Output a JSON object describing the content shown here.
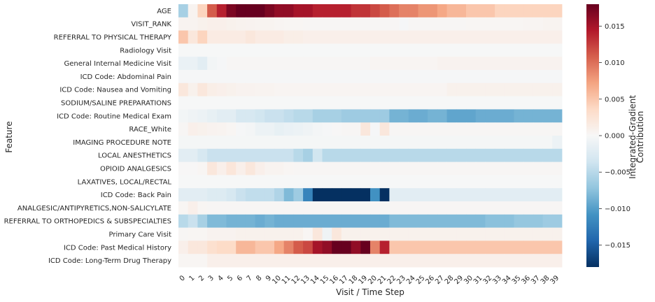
{
  "chart_data": {
    "type": "heatmap",
    "xlabel": "Visit / Time Step",
    "ylabel": "Feature",
    "colorbar_label": "Integrated-Gradient\nContribution",
    "colormap": "RdBu_r",
    "vmin": -0.018,
    "vmax": 0.018,
    "colorbar_ticks": [
      0.015,
      0.01,
      0.005,
      0.0,
      -0.005,
      -0.01,
      -0.015
    ],
    "colorbar_tick_labels": [
      "0.015",
      "0.010",
      "0.005",
      "0.000",
      "−0.005",
      "−0.010",
      "−0.015"
    ],
    "columns": [
      "0",
      "1",
      "2",
      "3",
      "4",
      "5",
      "6",
      "7",
      "8",
      "9",
      "10",
      "11",
      "12",
      "13",
      "14",
      "15",
      "16",
      "17",
      "18",
      "19",
      "20",
      "21",
      "22",
      "23",
      "24",
      "25",
      "26",
      "27",
      "28",
      "29",
      "30",
      "31",
      "32",
      "33",
      "34",
      "35",
      "36",
      "37",
      "38",
      "39"
    ],
    "rows": [
      "AGE",
      "VISIT_RANK",
      "REFERRAL TO PHYSICAL THERAPY",
      "Radiology Visit",
      "General Internal Medicine Visit",
      "ICD Code: Abdominal Pain",
      "ICD Code: Nausea and Vomiting",
      "SODIUM/SALINE PREPARATIONS",
      "ICD Code: Routine Medical Exam",
      "RACE_White",
      "IMAGING PROCEDURE NOTE",
      "LOCAL ANESTHETICS",
      "OPIOID ANALGESICS",
      "LAXATIVES, LOCAL/RECTAL",
      "ICD Code: Back Pain",
      "ANALGESIC/ANTIPYRETICS,NON-SALICYLATE",
      "REFERRAL TO ORTHOPEDICS & SUBSPECIALTIES",
      "Primary Care Visit",
      "ICD Code: Past Medical History",
      "ICD Code: Long-Term Drug Therapy"
    ],
    "values": [
      [
        -0.006,
        0.0005,
        0.004,
        0.011,
        0.014,
        0.017,
        0.018,
        0.018,
        0.018,
        0.017,
        0.016,
        0.016,
        0.015,
        0.015,
        0.014,
        0.014,
        0.014,
        0.014,
        0.013,
        0.013,
        0.012,
        0.011,
        0.01,
        0.009,
        0.009,
        0.008,
        0.008,
        0.007,
        0.006,
        0.006,
        0.005,
        0.005,
        0.005,
        0.004,
        0.004,
        0.004,
        0.004,
        0.004,
        0.004,
        0.004
      ],
      [
        0.0005,
        0.0005,
        0.0008,
        0.001,
        0.001,
        0.0008,
        0.0007,
        0.0006,
        0.0005,
        0.0005,
        0.0004,
        0.0003,
        0.0003,
        0.0002,
        0.0002,
        0.0002,
        0.0002,
        0.0002,
        0.0002,
        0.0002,
        0.0002,
        0.0002,
        0.0002,
        -0.0002,
        0.0002,
        0.0002,
        0.0002,
        0.0002,
        0.0002,
        0.0002,
        0.0003,
        0.0003,
        0.0003,
        0.0003,
        0.0003,
        0.0003,
        0.0004,
        0.0004,
        0.0005,
        0.0005
      ],
      [
        0.005,
        0.002,
        0.004,
        0.0015,
        0.0015,
        0.0015,
        0.0015,
        0.002,
        0.0015,
        0.0015,
        0.0015,
        0.0012,
        0.0012,
        0.001,
        0.001,
        0.001,
        0.001,
        0.001,
        0.001,
        0.001,
        0.001,
        0.001,
        0.001,
        0.001,
        0.001,
        0.001,
        0.001,
        0.001,
        0.001,
        0.001,
        0.001,
        0.001,
        0.001,
        0.001,
        0.001,
        0.001,
        0.001,
        0.001,
        0.001,
        0.001
      ],
      [
        -0.0001,
        -0.0001,
        -0.0001,
        -0.0001,
        -0.0001,
        -0.0001,
        -0.0001,
        -0.0001,
        -0.0001,
        -0.0001,
        -0.0001,
        -0.0001,
        -0.0001,
        -0.0001,
        -0.0001,
        -0.0001,
        -0.0001,
        -0.0001,
        -0.0001,
        -0.0001,
        -0.0001,
        -0.0001,
        -0.0001,
        -0.0001,
        -0.0001,
        -0.0001,
        -0.0001,
        -0.0001,
        -0.0001,
        -0.0001,
        -0.0001,
        -0.0001,
        -0.0001,
        -0.0001,
        -0.0001,
        -0.0001,
        -0.0001,
        -0.0001,
        -0.0001,
        -0.0001
      ],
      [
        -0.0012,
        -0.0012,
        -0.002,
        -0.0005,
        -0.0002,
        0.0002,
        0.0002,
        0.0002,
        0.0002,
        0.0002,
        0.0002,
        0.0002,
        0.0002,
        0.0002,
        0.0002,
        0.0002,
        0.0002,
        0.0002,
        0.0002,
        0.0002,
        0.0004,
        0.0004,
        0.0004,
        0.0004,
        0.0004,
        0.0004,
        0.0004,
        0.0006,
        0.0006,
        0.0006,
        0.0006,
        0.0006,
        0.0006,
        0.0006,
        0.0006,
        0.0006,
        0.0006,
        0.0006,
        0.0006,
        0.0006
      ],
      [
        -0.0002,
        -0.0002,
        -0.0002,
        -0.0002,
        -0.0002,
        -0.0002,
        -0.0002,
        -0.0002,
        -0.0002,
        -0.0002,
        -0.0002,
        -0.0002,
        -0.0002,
        -0.0002,
        -0.0002,
        -0.0002,
        -0.0002,
        -0.0002,
        -0.0002,
        -0.0002,
        -0.0002,
        -0.0002,
        -0.0002,
        -0.0002,
        -0.0002,
        -0.0002,
        -0.0002,
        -0.0002,
        -0.0002,
        -0.0002,
        -0.0002,
        -0.0002,
        -0.0002,
        -0.0002,
        -0.0002,
        -0.0002,
        -0.0002,
        -0.0002,
        -0.0002,
        -0.0002
      ],
      [
        0.002,
        0.0008,
        0.002,
        0.0012,
        0.001,
        0.0008,
        0.0006,
        0.0006,
        0.0005,
        0.0005,
        0.0004,
        0.0004,
        0.0004,
        0.0004,
        0.0004,
        0.0004,
        0.0004,
        0.0004,
        0.0004,
        0.0004,
        0.0004,
        0.0004,
        0.0004,
        0.0004,
        0.0004,
        0.0004,
        0.0004,
        0.0004,
        0.0008,
        0.0008,
        0.0008,
        0.0008,
        0.0008,
        0.0008,
        0.0008,
        0.0008,
        0.0008,
        0.0008,
        0.0008,
        0.0008
      ],
      [
        -0.0001,
        -0.0001,
        -0.0001,
        -0.0001,
        -0.0001,
        -0.0001,
        -0.0001,
        -0.0001,
        -0.0001,
        -0.0001,
        -0.0001,
        -0.0001,
        -0.0001,
        -0.0001,
        -0.0001,
        -0.0001,
        -0.0001,
        -0.0001,
        -0.0001,
        -0.0001,
        -0.0001,
        -0.0001,
        -0.0001,
        -0.0001,
        -0.0001,
        -0.0001,
        -0.0001,
        -0.0001,
        -0.0001,
        -0.0001,
        -0.0001,
        -0.0001,
        -0.0001,
        -0.0001,
        -0.0001,
        -0.0001,
        -0.0001,
        -0.0001,
        -0.0001,
        -0.0001
      ],
      [
        -0.0005,
        -0.0008,
        -0.001,
        -0.0015,
        -0.002,
        -0.002,
        -0.003,
        -0.003,
        -0.0035,
        -0.004,
        -0.004,
        -0.0045,
        -0.005,
        -0.005,
        -0.006,
        -0.006,
        -0.006,
        -0.0065,
        -0.0065,
        -0.0065,
        -0.0065,
        -0.0065,
        -0.0085,
        -0.0085,
        -0.009,
        -0.009,
        -0.0085,
        -0.0085,
        -0.0095,
        -0.0095,
        -0.0095,
        -0.009,
        -0.009,
        -0.009,
        -0.009,
        -0.0085,
        -0.0085,
        -0.0085,
        -0.0085,
        -0.0085
      ],
      [
        0.0002,
        0.001,
        0.0008,
        0.0006,
        0.0005,
        0.0003,
        -0.0002,
        -0.0004,
        -0.001,
        -0.001,
        -0.0015,
        -0.0012,
        -0.001,
        -0.0008,
        -0.0004,
        -0.0002,
        0.0001,
        0.0002,
        0.0002,
        0.002,
        -0.0002,
        0.002,
        0.0002,
        0.0002,
        0.0002,
        0.0002,
        0.0002,
        0.0002,
        0.0002,
        0.0002,
        0.0002,
        0.0002,
        0.0002,
        0.0002,
        0.0002,
        0.0002,
        0.0002,
        0.0002,
        0.0002,
        0.0002
      ],
      [
        -0.0003,
        -0.0003,
        -0.0003,
        -0.0003,
        -0.0003,
        -0.0003,
        -0.0003,
        -0.0003,
        -0.0003,
        -0.0003,
        -0.0003,
        -0.0003,
        -0.0003,
        -0.0003,
        -0.0003,
        -0.0003,
        -0.0003,
        -0.0003,
        -0.0003,
        -0.0003,
        -0.0003,
        -0.0003,
        -0.0003,
        -0.0003,
        -0.0003,
        -0.0003,
        -0.0003,
        -0.0003,
        -0.0003,
        -0.0003,
        -0.0003,
        -0.0003,
        -0.0003,
        -0.0003,
        -0.0003,
        -0.0003,
        -0.0003,
        -0.0003,
        -0.0003,
        -0.001
      ],
      [
        -0.002,
        -0.002,
        -0.003,
        -0.004,
        -0.004,
        -0.004,
        -0.004,
        -0.004,
        -0.004,
        -0.004,
        -0.004,
        -0.004,
        -0.005,
        -0.006,
        -0.0035,
        -0.005,
        -0.005,
        -0.005,
        -0.005,
        -0.005,
        -0.005,
        -0.005,
        -0.005,
        -0.005,
        -0.005,
        -0.005,
        -0.005,
        -0.005,
        -0.005,
        -0.005,
        -0.005,
        -0.005,
        -0.005,
        -0.005,
        -0.005,
        -0.005,
        -0.005,
        -0.005,
        -0.005,
        -0.005
      ],
      [
        0.0001,
        0.0001,
        0.0003,
        0.002,
        0.001,
        0.0022,
        0.001,
        0.002,
        0.001,
        0.0005,
        0.0005,
        0.0003,
        0.0002,
        0.0002,
        0.0002,
        0.0002,
        0.0002,
        0.0002,
        0.0002,
        0.0002,
        0.0002,
        0.0002,
        0.0002,
        0.0002,
        0.0002,
        0.0002,
        0.0002,
        0.0002,
        0.0002,
        0.0002,
        0.0002,
        0.0002,
        0.0002,
        0.0002,
        0.0002,
        0.0002,
        0.0002,
        0.0002,
        0.0002,
        0.0002
      ],
      [
        -0.0001,
        -0.0001,
        -0.0001,
        -0.0001,
        -0.0001,
        -0.0001,
        -0.0001,
        -0.0001,
        -0.0001,
        -0.0001,
        -0.0001,
        -0.0001,
        -0.0001,
        -0.0001,
        -0.0001,
        -0.0001,
        -0.0001,
        -0.0001,
        -0.0001,
        -0.0001,
        -0.0001,
        -0.0001,
        -0.0001,
        -0.0001,
        -0.0001,
        -0.0001,
        -0.0001,
        -0.0001,
        -0.0001,
        -0.0001,
        -0.0001,
        -0.0001,
        -0.0001,
        -0.0001,
        -0.0001,
        -0.0001,
        -0.0001,
        -0.0001,
        -0.0001,
        -0.0001
      ],
      [
        -0.002,
        -0.002,
        -0.002,
        -0.0025,
        -0.0025,
        -0.003,
        -0.004,
        -0.0045,
        -0.0045,
        -0.0045,
        -0.0055,
        -0.008,
        -0.0065,
        -0.012,
        -0.018,
        -0.018,
        -0.018,
        -0.018,
        -0.018,
        -0.018,
        -0.011,
        -0.018,
        -0.002,
        -0.002,
        -0.002,
        -0.002,
        -0.002,
        -0.002,
        -0.002,
        -0.002,
        -0.002,
        -0.002,
        -0.002,
        -0.002,
        -0.002,
        -0.002,
        -0.002,
        -0.002,
        -0.002,
        -0.002
      ],
      [
        0.0003,
        0.001,
        0.0003,
        0.0002,
        0.0002,
        0.0002,
        0.0002,
        0.0002,
        0.0002,
        0.0002,
        0.0002,
        0.0002,
        0.0002,
        0.0002,
        0.0002,
        0.0002,
        0.0002,
        0.0002,
        0.0002,
        0.0002,
        0.0002,
        0.0002,
        0.0002,
        0.0002,
        0.0002,
        0.0002,
        0.0002,
        0.0002,
        0.0002,
        0.0002,
        0.0002,
        0.0002,
        0.0002,
        0.0002,
        0.0002,
        0.0002,
        0.0002,
        0.0002,
        0.0002,
        0.0002
      ],
      [
        -0.005,
        -0.004,
        -0.006,
        -0.008,
        -0.008,
        -0.0085,
        -0.0085,
        -0.0085,
        -0.009,
        -0.0085,
        -0.009,
        -0.009,
        -0.009,
        -0.009,
        -0.009,
        -0.009,
        -0.009,
        -0.009,
        -0.009,
        -0.009,
        -0.009,
        -0.009,
        -0.008,
        -0.008,
        -0.008,
        -0.008,
        -0.008,
        -0.008,
        -0.008,
        -0.008,
        -0.008,
        -0.008,
        -0.0075,
        -0.0075,
        -0.0075,
        -0.007,
        -0.007,
        -0.007,
        -0.0065,
        -0.0065
      ],
      [
        0.0002,
        0.0003,
        0.0003,
        0.0006,
        0.0006,
        0.0006,
        0.0008,
        0.0008,
        0.0008,
        0.0008,
        0.0008,
        0.0008,
        0.0008,
        0.0003,
        0.002,
        -0.0008,
        0.002,
        0.0008,
        0.0008,
        0.0008,
        0.0008,
        0.0008,
        0.0008,
        0.0008,
        0.0008,
        0.0008,
        0.0008,
        0.0008,
        0.0008,
        0.0008,
        0.0008,
        0.0008,
        0.0008,
        0.0008,
        0.0008,
        0.0008,
        0.0008,
        0.0008,
        0.0008,
        0.0008
      ],
      [
        0.001,
        0.002,
        0.002,
        0.003,
        0.0035,
        0.0035,
        0.006,
        0.006,
        0.005,
        0.005,
        0.007,
        0.009,
        0.011,
        0.012,
        0.015,
        0.016,
        0.018,
        0.018,
        0.016,
        0.018,
        0.009,
        0.014,
        0.005,
        0.005,
        0.005,
        0.005,
        0.005,
        0.005,
        0.005,
        0.005,
        0.005,
        0.005,
        0.005,
        0.005,
        0.005,
        0.005,
        0.005,
        0.005,
        0.005,
        0.005
      ],
      [
        0.0003,
        0.0003,
        0.0003,
        0.001,
        0.001,
        0.001,
        0.001,
        0.001,
        0.001,
        0.001,
        0.001,
        0.001,
        0.001,
        0.001,
        0.001,
        0.001,
        0.001,
        0.001,
        0.001,
        0.001,
        0.001,
        0.001,
        0.001,
        0.001,
        0.001,
        0.001,
        0.001,
        0.001,
        0.001,
        0.001,
        0.001,
        0.001,
        0.001,
        0.001,
        0.001,
        0.001,
        0.001,
        0.001,
        0.001,
        0.001
      ]
    ]
  }
}
